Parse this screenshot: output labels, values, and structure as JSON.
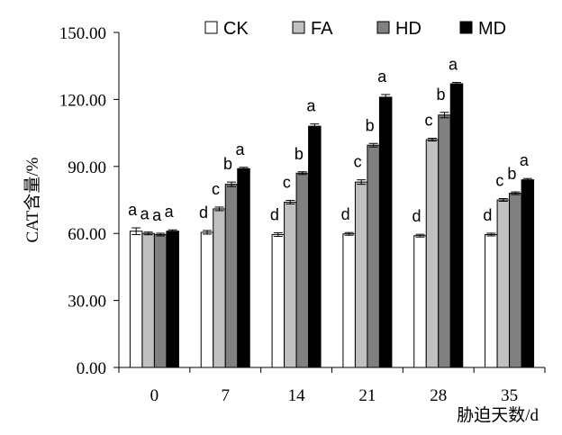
{
  "chart_data": {
    "type": "bar",
    "title": "",
    "xlabel": "胁迫天数/d",
    "ylabel": "CAT含量/%",
    "ylim": [
      0,
      150
    ],
    "yticks": [
      "0.00",
      "30.00",
      "60.00",
      "90.00",
      "120.00",
      "150.00"
    ],
    "ytick_values": [
      0,
      30,
      60,
      90,
      120,
      150
    ],
    "categories": [
      "0",
      "7",
      "14",
      "21",
      "28",
      "35"
    ],
    "grid": false,
    "legend_position": "top",
    "series": [
      {
        "name": "CK",
        "color": "#ffffff",
        "values": [
          61,
          60.5,
          59.5,
          59.8,
          59,
          59.5
        ],
        "errors": [
          1.5,
          0.8,
          0.8,
          0.6,
          0.6,
          0.6
        ],
        "letters": [
          "a",
          "d",
          "d",
          "d",
          "d",
          "d"
        ]
      },
      {
        "name": "FA",
        "color": "#c0c0c0",
        "values": [
          60,
          71,
          74,
          83,
          102,
          75
        ],
        "errors": [
          0.6,
          0.8,
          0.8,
          1.0,
          0.6,
          0.6
        ],
        "letters": [
          "a",
          "c",
          "c",
          "c",
          "c",
          "c"
        ]
      },
      {
        "name": "HD",
        "color": "#808080",
        "values": [
          59.5,
          82,
          87,
          99.5,
          113,
          78
        ],
        "errors": [
          0.6,
          1.0,
          0.6,
          0.8,
          1.2,
          0.6
        ],
        "letters": [
          "a",
          "b",
          "b",
          "b",
          "b",
          "b"
        ]
      },
      {
        "name": "MD",
        "color": "#000000",
        "values": [
          61,
          89,
          108,
          121,
          127,
          84
        ],
        "errors": [
          0.6,
          0.6,
          1.0,
          1.2,
          0.6,
          0.6
        ],
        "letters": [
          "a",
          "a",
          "a",
          "a",
          "a",
          "a"
        ]
      }
    ]
  }
}
